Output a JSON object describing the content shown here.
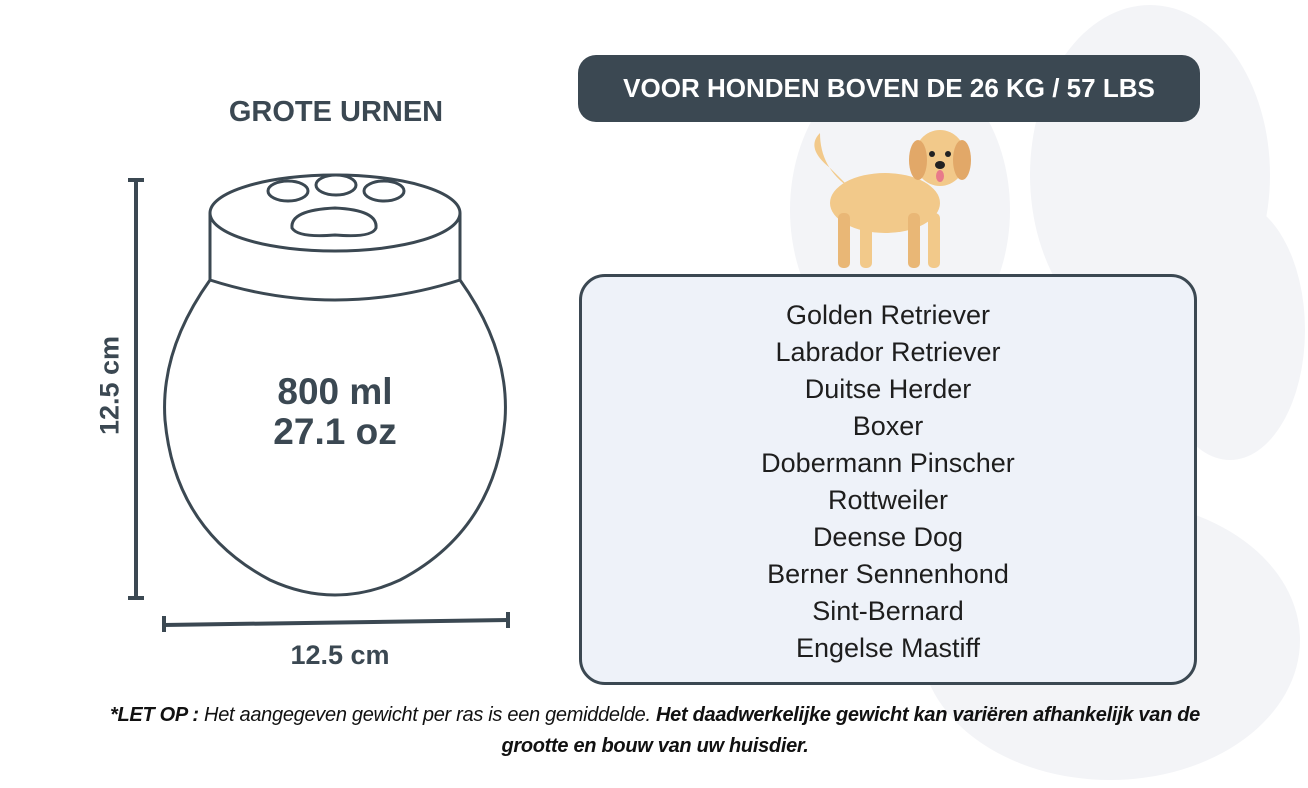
{
  "title": "GROTE URNEN",
  "banner": "VOOR HONDEN BOVEN DE 26 KG / 57 LBS",
  "volume": {
    "ml": "800 ml",
    "oz": "27.1 oz"
  },
  "dimensions": {
    "height": "12.5 cm",
    "width": "12.5 cm"
  },
  "breeds": [
    "Golden Retriever",
    "Labrador Retriever",
    "Duitse Herder",
    "Boxer",
    "Dobermann Pinscher",
    "Rottweiler",
    "Deense Dog",
    "Berner Sennenhond",
    "Sint-Bernard",
    "Engelse Mastiff"
  ],
  "note": {
    "label": "*LET OP :",
    "text1": " Het aangegeven gewicht per ras is een gemiddelde. ",
    "bold": "Het daadwerkelijke gewicht kan variëren afhankelijk van de grootte en bouw van uw huisdier."
  },
  "colors": {
    "dark": "#3b4852",
    "box": "#eef2f9",
    "dog": "#f2c98a"
  }
}
